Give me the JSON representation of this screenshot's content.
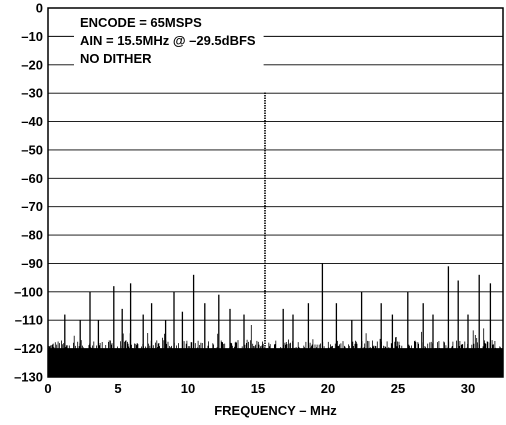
{
  "chart_data": {
    "type": "line",
    "title": "",
    "xlabel": "FREQUENCY – MHz",
    "ylabel": "",
    "xlim": [
      0,
      32.5
    ],
    "ylim": [
      -130,
      0
    ],
    "x_ticks": [
      0,
      5,
      10,
      15,
      20,
      25,
      30
    ],
    "y_ticks": [
      0,
      -10,
      -20,
      -30,
      -40,
      -50,
      -60,
      -70,
      -80,
      -90,
      -100,
      -110,
      -120,
      -130
    ],
    "y_tick_labels": [
      "0",
      "–10",
      "–20",
      "–30",
      "–40",
      "–50",
      "–60",
      "–70",
      "–80",
      "–90",
      "–100",
      "–110",
      "–120",
      "–130"
    ],
    "grid": true,
    "annotations": [
      "ENCODE = 65MSPS",
      "AIN = 15.5MHz @ –29.5dBFS",
      "NO DITHER"
    ],
    "noise_floor_dbfs": -121,
    "series": [
      {
        "x": [
          1.2,
          2.3,
          3.0,
          3.6,
          4.7,
          5.3,
          5.9,
          6.8,
          7.4,
          8.4,
          9.0,
          9.6,
          10.4,
          11.2,
          12.2,
          13.0,
          14.0,
          15.5,
          16.8,
          17.5,
          18.6,
          19.6,
          20.6,
          21.7,
          22.4,
          23.8,
          24.6,
          25.7,
          26.8,
          27.5,
          28.6,
          29.3,
          30.0,
          30.8,
          31.6
        ],
        "y": [
          -108,
          -110,
          -100,
          -110,
          -98,
          -106,
          -97,
          -108,
          -104,
          -110,
          -100,
          -107,
          -94,
          -104,
          -101,
          -106,
          -108,
          -29.5,
          -106,
          -108,
          -104,
          -90,
          -104,
          -110,
          -100,
          -104,
          -108,
          -100,
          -104,
          -108,
          -91,
          -96,
          -108,
          -94,
          -97
        ]
      }
    ]
  }
}
